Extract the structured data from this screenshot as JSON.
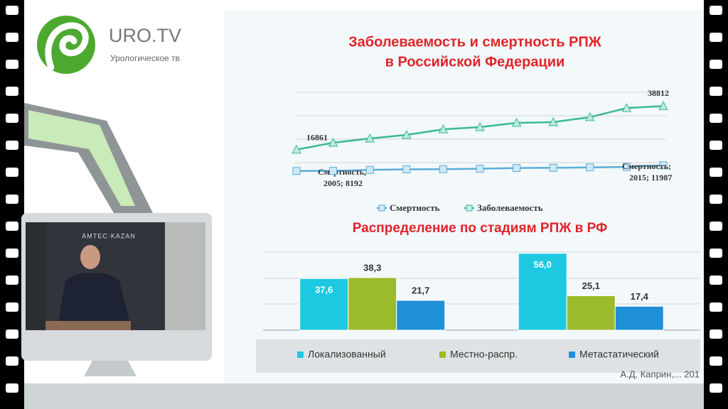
{
  "logo": {
    "name": "URO.TV",
    "tagline": "Урологическое тв"
  },
  "video": {
    "backdrop_text": "AMTEC·KAZAN"
  },
  "source": "А.Д. Каприн,... 201",
  "chart_data": [
    {
      "type": "line",
      "title": [
        "Заболеваемость и смертность РПЖ",
        "в Российской Федерации"
      ],
      "categories": [
        null,
        null,
        null,
        null,
        null,
        null,
        null,
        null,
        null,
        null,
        null
      ],
      "ylim": [
        0,
        45000
      ],
      "y2lim": [
        0,
        60000
      ],
      "series": [
        {
          "name": "Смертность",
          "color": "#5aaed8",
          "axis": "y2",
          "values": [
            8192,
            8300,
            8900,
            9300,
            9400,
            9700,
            10200,
            10300,
            10600,
            10900,
            11987
          ],
          "value_labels": [
            "Смертность, 2005; 8192",
            null,
            null,
            null,
            null,
            null,
            null,
            null,
            null,
            null,
            "Смертность; 2015; 11987"
          ]
        },
        {
          "name": "Заболеваемость",
          "color": "#3ab89a",
          "values": [
            16861,
            20350,
            22500,
            24300,
            27100,
            28200,
            30350,
            30700,
            33200,
            37800,
            38812
          ],
          "value_labels": [
            "16861",
            null,
            null,
            null,
            null,
            null,
            null,
            null,
            null,
            null,
            "38812"
          ]
        }
      ]
    },
    {
      "type": "bar",
      "title": "Распределение по стадиям РПЖ в РФ",
      "categories": [
        null,
        null
      ],
      "ylim": [
        0,
        60
      ],
      "series": [
        {
          "name": "Локализованный",
          "color": "#1ec8e0",
          "values": [
            37.6,
            56.0
          ],
          "value_labels": [
            "37,6",
            "56,0"
          ]
        },
        {
          "name": "Местно-распр.",
          "color": "#9bbb2a",
          "values": [
            38.3,
            25.1
          ],
          "value_labels": [
            "38,3",
            "25,1"
          ]
        },
        {
          "name": "Метастатический",
          "color": "#1f8fd8",
          "values": [
            21.7,
            17.4
          ],
          "value_labels": [
            "21,7",
            "17,4"
          ]
        }
      ]
    }
  ]
}
